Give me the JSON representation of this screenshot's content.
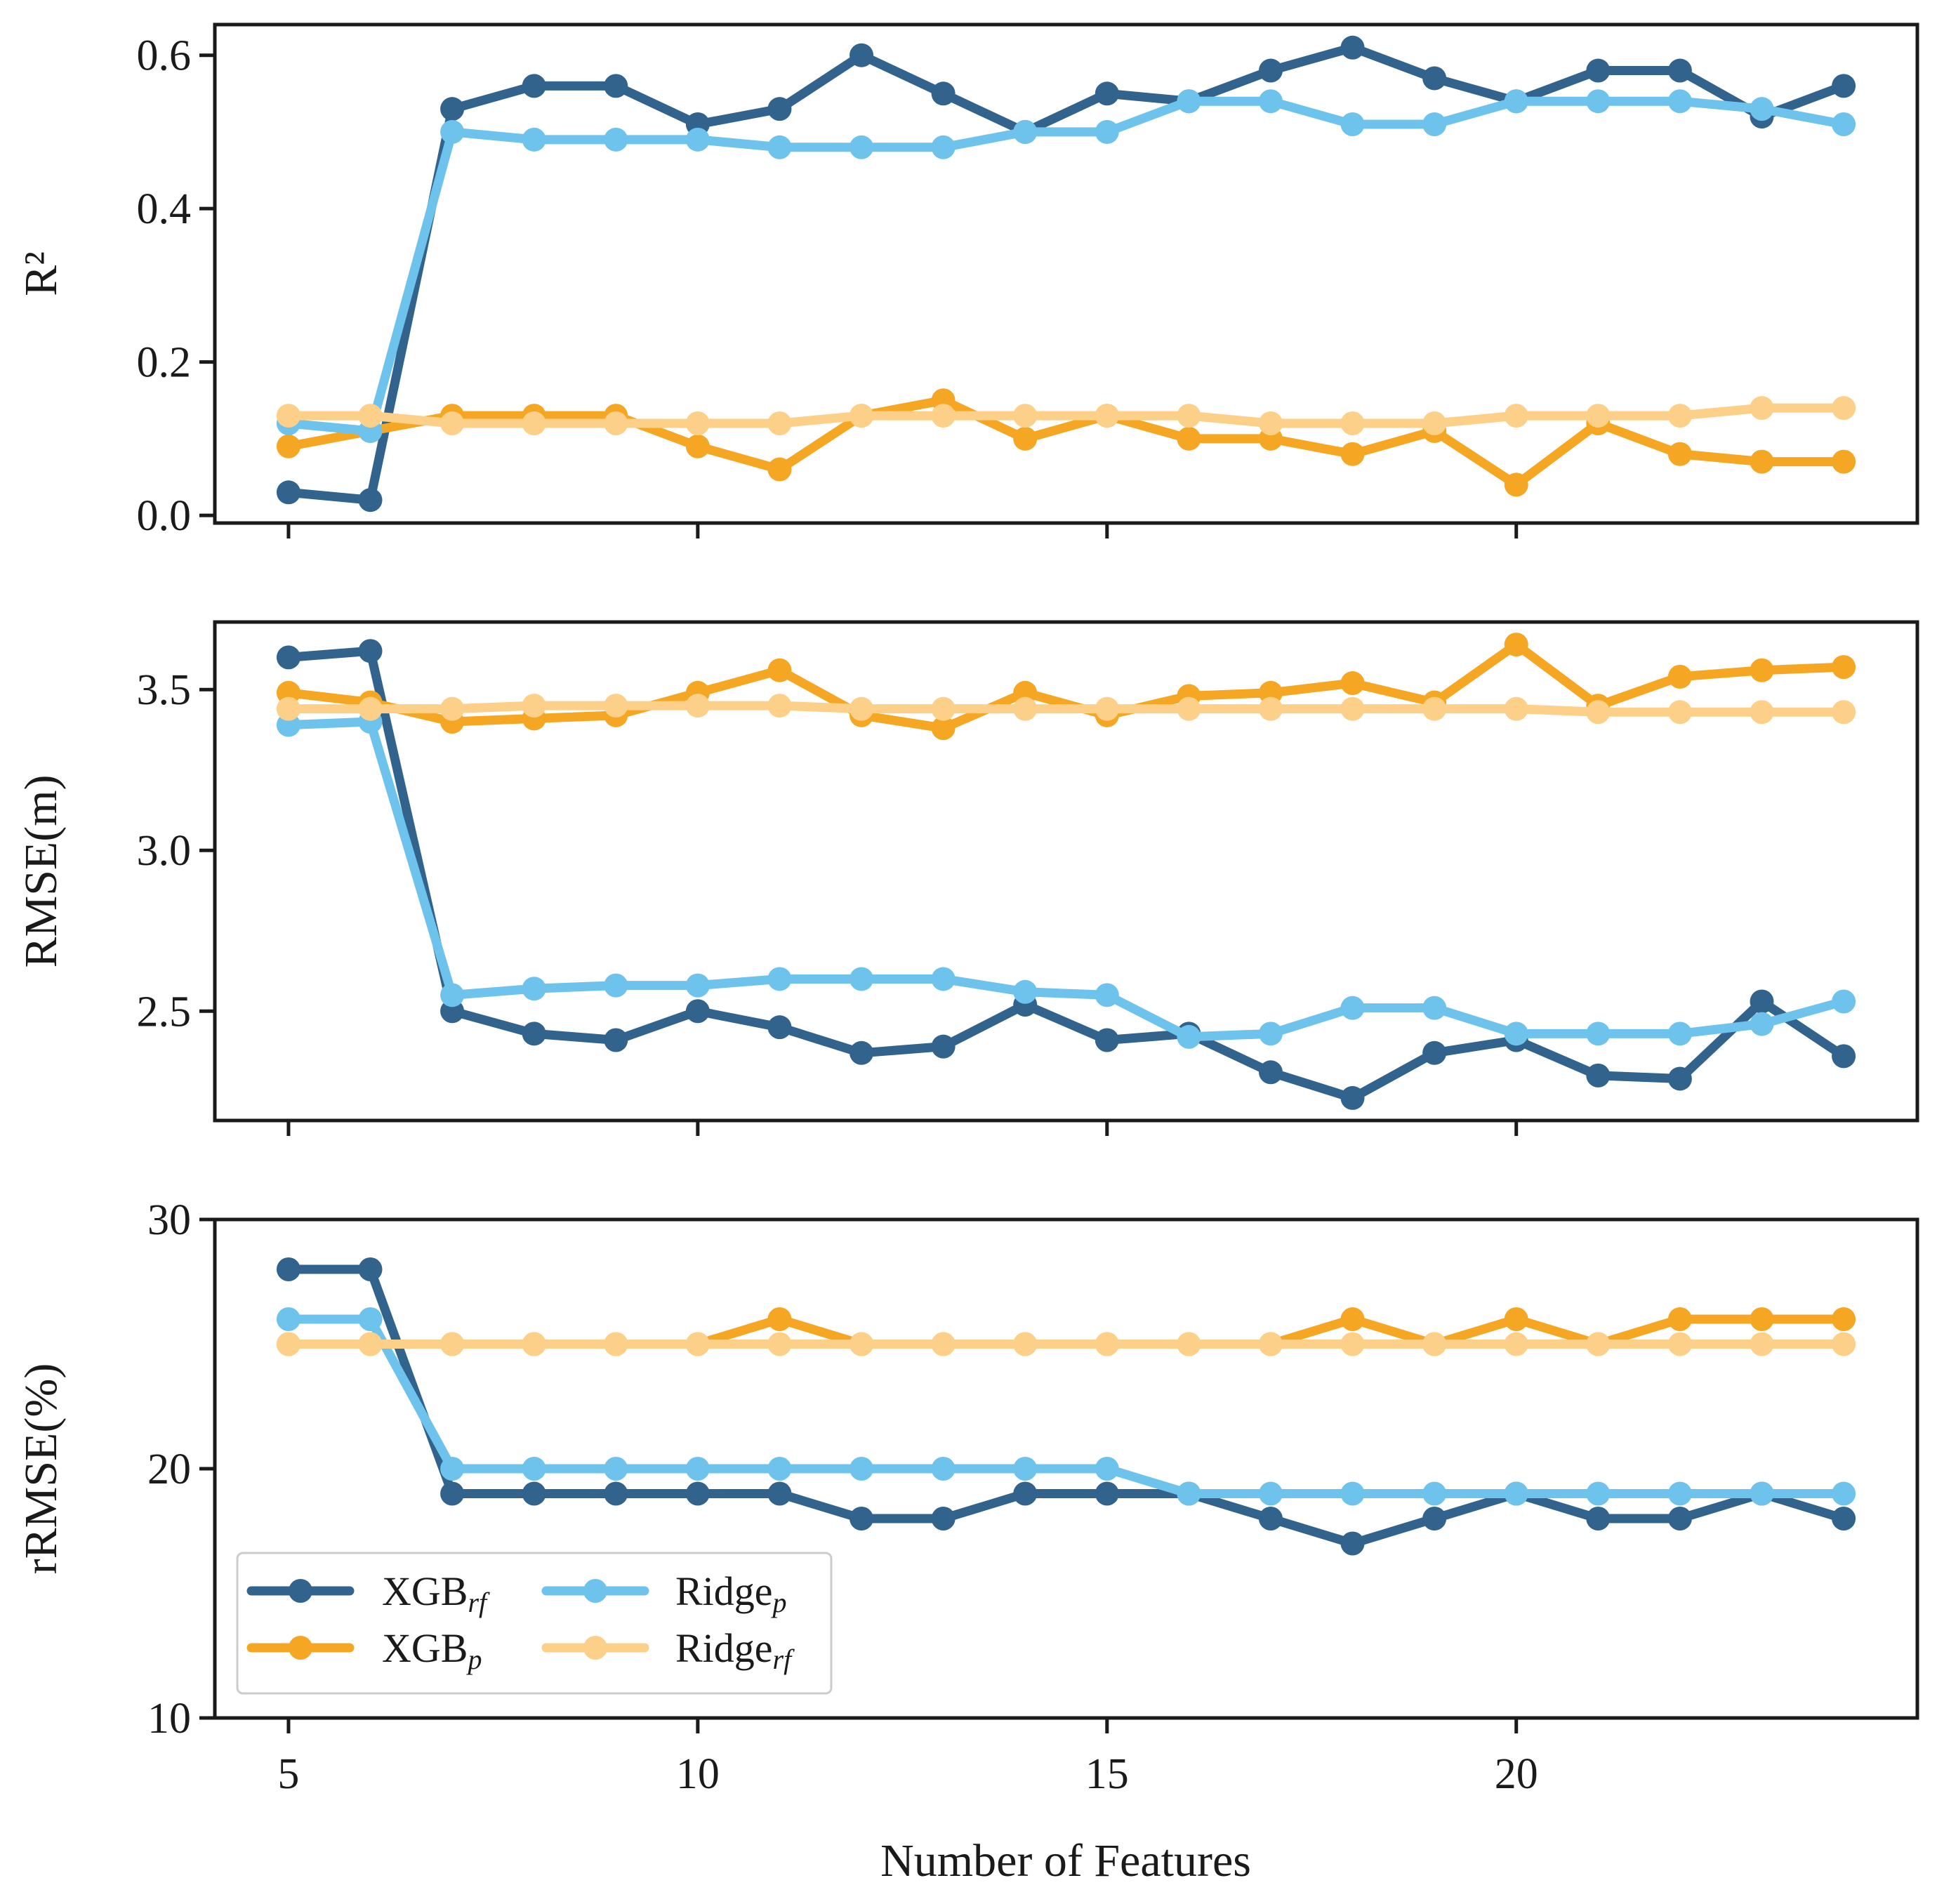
{
  "chart_data": {
    "type": "line",
    "x": [
      5,
      6,
      7,
      8,
      9,
      10,
      11,
      12,
      13,
      14,
      15,
      16,
      17,
      18,
      19,
      20,
      21,
      22,
      23,
      24
    ],
    "xlabel": "Number of Features",
    "xticks": [
      "5",
      "10",
      "15",
      "20"
    ],
    "legend": {
      "placement": "lower-left",
      "entries": [
        {
          "base": "XGB",
          "sub": "rf"
        },
        {
          "base": "XGB",
          "sub": "p"
        },
        {
          "base": "Ridge",
          "sub": "p"
        },
        {
          "base": "Ridge",
          "sub": "rf"
        }
      ]
    },
    "colors": {
      "xgb_rf": "#31638d",
      "xgb_p": "#f5a623",
      "ridge_p": "#6ec3ed",
      "ridge_rf": "#fdd089"
    },
    "panels": [
      {
        "ylabel": "R²",
        "ylim": [
          -0.01,
          0.64
        ],
        "yticks": [
          "0.0",
          "0.2",
          "0.4",
          "0.6"
        ],
        "series": [
          {
            "key": "xgb_rf",
            "values": [
              0.03,
              0.02,
              0.53,
              0.56,
              0.56,
              0.51,
              0.53,
              0.6,
              0.55,
              0.5,
              0.55,
              0.54,
              0.58,
              0.61,
              0.57,
              0.54,
              0.58,
              0.58,
              0.52,
              0.56
            ]
          },
          {
            "key": "xgb_p",
            "values": [
              0.09,
              0.11,
              0.13,
              0.13,
              0.13,
              0.09,
              0.06,
              0.13,
              0.15,
              0.1,
              0.13,
              0.1,
              0.1,
              0.08,
              0.11,
              0.04,
              0.12,
              0.08,
              0.07,
              0.07
            ]
          },
          {
            "key": "ridge_p",
            "values": [
              0.12,
              0.11,
              0.5,
              0.49,
              0.49,
              0.49,
              0.48,
              0.48,
              0.48,
              0.5,
              0.5,
              0.54,
              0.54,
              0.51,
              0.51,
              0.54,
              0.54,
              0.54,
              0.53,
              0.51
            ]
          },
          {
            "key": "ridge_rf",
            "values": [
              0.13,
              0.13,
              0.12,
              0.12,
              0.12,
              0.12,
              0.12,
              0.13,
              0.13,
              0.13,
              0.13,
              0.13,
              0.12,
              0.12,
              0.12,
              0.13,
              0.13,
              0.13,
              0.14,
              0.14
            ]
          }
        ]
      },
      {
        "ylabel": "RMSE(m)",
        "ylim": [
          2.16,
          3.71
        ],
        "yticks": [
          "2.5",
          "3.0",
          "3.5"
        ],
        "series": [
          {
            "key": "xgb_rf",
            "values": [
              3.6,
              3.62,
              2.5,
              2.43,
              2.41,
              2.5,
              2.45,
              2.37,
              2.39,
              2.52,
              2.41,
              2.43,
              2.31,
              2.23,
              2.37,
              2.41,
              2.3,
              2.29,
              2.53,
              2.36
            ]
          },
          {
            "key": "xgb_p",
            "values": [
              3.49,
              3.46,
              3.4,
              3.41,
              3.42,
              3.49,
              3.56,
              3.42,
              3.38,
              3.49,
              3.42,
              3.48,
              3.49,
              3.52,
              3.46,
              3.64,
              3.45,
              3.54,
              3.56,
              3.57
            ]
          },
          {
            "key": "ridge_p",
            "values": [
              3.39,
              3.4,
              2.55,
              2.57,
              2.58,
              2.58,
              2.6,
              2.6,
              2.6,
              2.56,
              2.55,
              2.42,
              2.43,
              2.51,
              2.51,
              2.43,
              2.43,
              2.43,
              2.46,
              2.53
            ]
          },
          {
            "key": "ridge_rf",
            "values": [
              3.44,
              3.44,
              3.44,
              3.45,
              3.45,
              3.45,
              3.45,
              3.44,
              3.44,
              3.44,
              3.44,
              3.44,
              3.44,
              3.44,
              3.44,
              3.44,
              3.43,
              3.43,
              3.43,
              3.43
            ]
          }
        ]
      },
      {
        "ylabel": "rRMSE(%)",
        "ylim": [
          10,
          30
        ],
        "yticks": [
          "10",
          "20",
          "30"
        ],
        "series": [
          {
            "key": "xgb_rf",
            "values": [
              28,
              28,
              19,
              19,
              19,
              19,
              19,
              18,
              18,
              19,
              19,
              19,
              18,
              17,
              18,
              19,
              18,
              18,
              19,
              18
            ]
          },
          {
            "key": "xgb_p",
            "values": [
              25,
              25,
              25,
              25,
              25,
              25,
              26,
              25,
              25,
              25,
              25,
              25,
              25,
              26,
              25,
              26,
              25,
              26,
              26,
              26
            ]
          },
          {
            "key": "ridge_p",
            "values": [
              26,
              26,
              20,
              20,
              20,
              20,
              20,
              20,
              20,
              20,
              20,
              19,
              19,
              19,
              19,
              19,
              19,
              19,
              19,
              19
            ]
          },
          {
            "key": "ridge_rf",
            "values": [
              25,
              25,
              25,
              25,
              25,
              25,
              25,
              25,
              25,
              25,
              25,
              25,
              25,
              25,
              25,
              25,
              25,
              25,
              25,
              25
            ]
          }
        ]
      }
    ]
  }
}
